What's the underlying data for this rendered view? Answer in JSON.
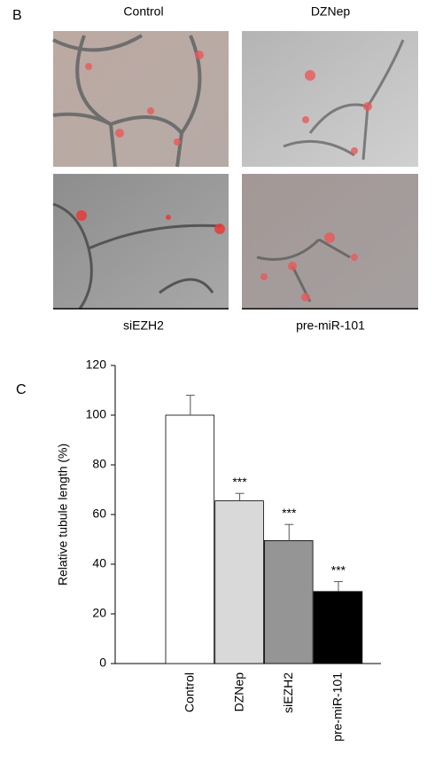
{
  "panels": {
    "b_label": "B",
    "c_label": "C"
  },
  "images": [
    {
      "label": "Control"
    },
    {
      "label": "DZNep"
    },
    {
      "label": "siEZH2"
    },
    {
      "label": "pre-miR-101"
    }
  ],
  "chart_data": {
    "type": "bar",
    "y_label": "Relative tubule length (%)",
    "categories": [
      "Control",
      "DZNep",
      "siEZH2",
      "pre-miR-101"
    ],
    "values": [
      100,
      65.5,
      49.5,
      29
    ],
    "errors": [
      8,
      3,
      6.5,
      4
    ],
    "colors": [
      "#ffffff",
      "#d9d9d9",
      "#959595",
      "#000000"
    ],
    "significance": [
      null,
      "***",
      "***",
      "***"
    ],
    "ylim": [
      0,
      120
    ],
    "yticks": [
      0,
      20,
      40,
      60,
      80,
      100,
      120
    ]
  }
}
